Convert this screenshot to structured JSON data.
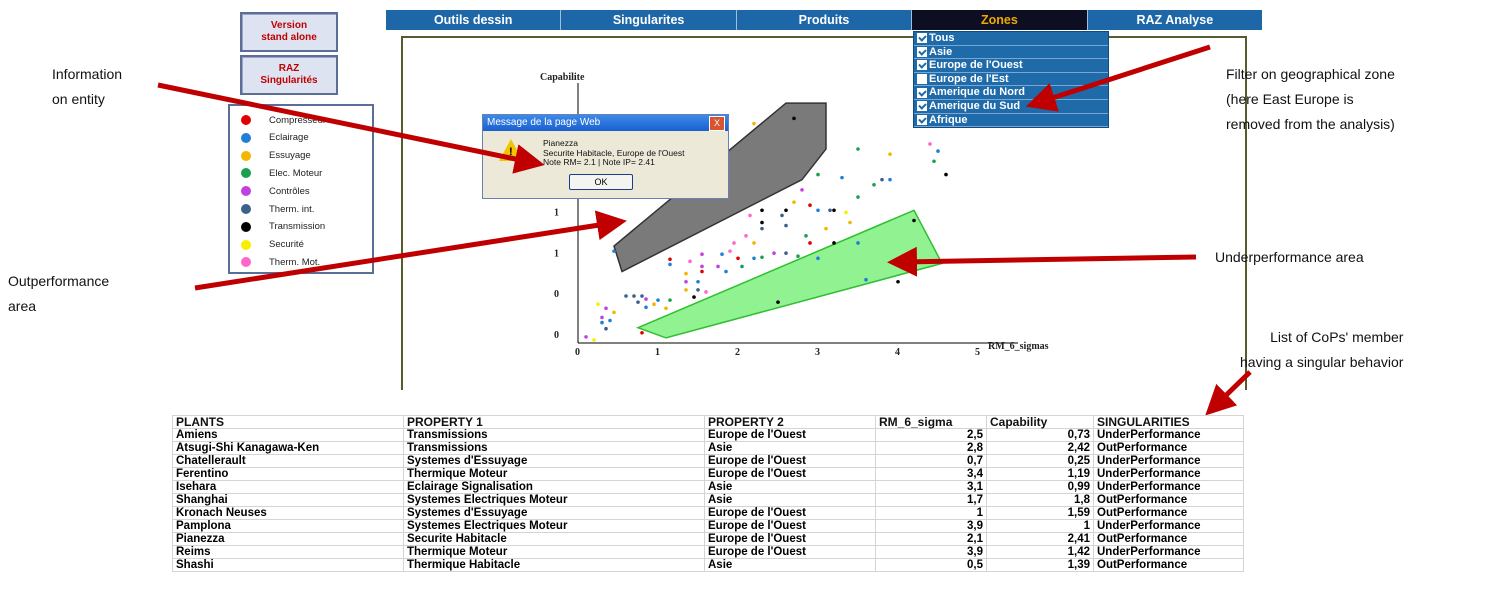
{
  "side_buttons": [
    {
      "label": "Version\nstand alone"
    },
    {
      "label": "RAZ\nSingularités"
    }
  ],
  "legend": [
    {
      "label": "Compresseur",
      "color": "#e00000"
    },
    {
      "label": "Eclairage",
      "color": "#1f7fd6"
    },
    {
      "label": "Essuyage",
      "color": "#f5b400"
    },
    {
      "label": "Elec. Moteur",
      "color": "#1aa050"
    },
    {
      "label": "Contrôles",
      "color": "#c040e0"
    },
    {
      "label": "Therm. int.",
      "color": "#3c5f8c"
    },
    {
      "label": "Transmission",
      "color": "#000000"
    },
    {
      "label": "Securité",
      "color": "#f5f000"
    },
    {
      "label": "Therm. Mot.",
      "color": "#ff66cc"
    }
  ],
  "menu": [
    {
      "label": "Outils dessin",
      "active": false
    },
    {
      "label": "Singularites",
      "active": false
    },
    {
      "label": "Produits",
      "active": false
    },
    {
      "label": "Zones",
      "active": true
    },
    {
      "label": "RAZ Analyse",
      "active": false
    }
  ],
  "zones": [
    {
      "label": "Tous",
      "checked": true
    },
    {
      "label": "Asie",
      "checked": true
    },
    {
      "label": "Europe de l'Ouest",
      "checked": true
    },
    {
      "label": "Europe de l'Est",
      "checked": false
    },
    {
      "label": "Amerique du Nord",
      "checked": true
    },
    {
      "label": "Amerique du Sud",
      "checked": true
    },
    {
      "label": "Afrique",
      "checked": true
    }
  ],
  "dialog": {
    "title": "Message de la page Web",
    "close": "X",
    "lines": [
      "Pianezza",
      "Securite Habitacle, Europe de l'Ouest",
      "Note RM= 2.1  |  Note IP= 2.41"
    ],
    "ok": "OK",
    "icon": "warning-icon"
  },
  "annotations": {
    "info": "Information\non entity",
    "filter": "Filter on geographical zone\n(here East Europe is\nremoved from the analysis)",
    "outperf": "Outperformance\narea",
    "underperf": "Underperformance area",
    "list": "List of CoPs' member\nhaving a singular behavior"
  },
  "chart_data": {
    "type": "scatter",
    "ylabel": "Capabilite",
    "xlabel": "RM_6_sigmas",
    "xlim": [
      0,
      5.5
    ],
    "ylim": [
      0,
      2.4
    ],
    "x_ticks": [
      "0",
      "1",
      "2",
      "3",
      "4",
      "5"
    ],
    "y_ticks": [
      "0",
      "0",
      "1",
      "1",
      "2",
      "2"
    ],
    "outperformance_polygon": [
      [
        0.45,
        0.95
      ],
      [
        2.6,
        2.35
      ],
      [
        3.1,
        2.35
      ],
      [
        3.1,
        1.9
      ],
      [
        2.8,
        1.6
      ],
      [
        0.55,
        0.7
      ]
    ],
    "underperformance_polygon": [
      [
        0.75,
        0.15
      ],
      [
        4.2,
        1.3
      ],
      [
        4.55,
        0.78
      ],
      [
        1.1,
        0.05
      ]
    ],
    "points": [
      {
        "x": 2.7,
        "y": 2.2,
        "color": "#000000"
      },
      {
        "x": 2.2,
        "y": 2.15,
        "color": "#f5b400"
      },
      {
        "x": 3.5,
        "y": 1.9,
        "color": "#1aa050"
      },
      {
        "x": 3.9,
        "y": 1.85,
        "color": "#f5b400"
      },
      {
        "x": 4.4,
        "y": 1.95,
        "color": "#ff66cc"
      },
      {
        "x": 4.5,
        "y": 1.88,
        "color": "#1f7fd6"
      },
      {
        "x": 4.45,
        "y": 1.78,
        "color": "#1aa050"
      },
      {
        "x": 4.6,
        "y": 1.65,
        "color": "#000000"
      },
      {
        "x": 3.0,
        "y": 1.65,
        "color": "#1aa050"
      },
      {
        "x": 3.3,
        "y": 1.62,
        "color": "#1f7fd6"
      },
      {
        "x": 3.7,
        "y": 1.55,
        "color": "#1aa050"
      },
      {
        "x": 3.8,
        "y": 1.6,
        "color": "#3c5f8c"
      },
      {
        "x": 3.9,
        "y": 1.6,
        "color": "#1f7fd6"
      },
      {
        "x": 2.8,
        "y": 1.5,
        "color": "#c040e0"
      },
      {
        "x": 3.5,
        "y": 1.43,
        "color": "#1aa050"
      },
      {
        "x": 2.7,
        "y": 1.38,
        "color": "#f5b400"
      },
      {
        "x": 2.9,
        "y": 1.35,
        "color": "#e00000"
      },
      {
        "x": 2.6,
        "y": 1.3,
        "color": "#000000"
      },
      {
        "x": 2.3,
        "y": 1.3,
        "color": "#000000"
      },
      {
        "x": 2.15,
        "y": 1.25,
        "color": "#ff66cc"
      },
      {
        "x": 2.55,
        "y": 1.25,
        "color": "#3c5f8c"
      },
      {
        "x": 3.0,
        "y": 1.3,
        "color": "#1f7fd6"
      },
      {
        "x": 3.15,
        "y": 1.3,
        "color": "#3c5f8c"
      },
      {
        "x": 3.2,
        "y": 1.3,
        "color": "#000000"
      },
      {
        "x": 3.35,
        "y": 1.28,
        "color": "#f5f000"
      },
      {
        "x": 2.3,
        "y": 1.18,
        "color": "#000000"
      },
      {
        "x": 2.3,
        "y": 1.12,
        "color": "#3c5f8c"
      },
      {
        "x": 3.1,
        "y": 1.12,
        "color": "#f5b400"
      },
      {
        "x": 3.4,
        "y": 1.18,
        "color": "#f5b400"
      },
      {
        "x": 2.6,
        "y": 1.15,
        "color": "#3c5f8c"
      },
      {
        "x": 2.1,
        "y": 1.05,
        "color": "#ff66cc"
      },
      {
        "x": 2.85,
        "y": 1.05,
        "color": "#1aa050"
      },
      {
        "x": 2.9,
        "y": 0.98,
        "color": "#e00000"
      },
      {
        "x": 3.2,
        "y": 0.98,
        "color": "#000000"
      },
      {
        "x": 3.5,
        "y": 0.98,
        "color": "#1f7fd6"
      },
      {
        "x": 1.95,
        "y": 0.98,
        "color": "#ff66cc"
      },
      {
        "x": 2.2,
        "y": 0.98,
        "color": "#f5b400"
      },
      {
        "x": 1.9,
        "y": 0.9,
        "color": "#ff66cc"
      },
      {
        "x": 2.45,
        "y": 0.88,
        "color": "#c040e0"
      },
      {
        "x": 2.6,
        "y": 0.88,
        "color": "#3c5f8c"
      },
      {
        "x": 1.55,
        "y": 0.87,
        "color": "#c040e0"
      },
      {
        "x": 1.8,
        "y": 0.87,
        "color": "#1f7fd6"
      },
      {
        "x": 2.0,
        "y": 0.83,
        "color": "#e00000"
      },
      {
        "x": 2.2,
        "y": 0.83,
        "color": "#1f7fd6"
      },
      {
        "x": 2.3,
        "y": 0.84,
        "color": "#1aa050"
      },
      {
        "x": 2.75,
        "y": 0.85,
        "color": "#1aa050"
      },
      {
        "x": 1.15,
        "y": 0.82,
        "color": "#e00000"
      },
      {
        "x": 1.15,
        "y": 0.77,
        "color": "#1f7fd6"
      },
      {
        "x": 1.4,
        "y": 0.8,
        "color": "#ff66cc"
      },
      {
        "x": 1.55,
        "y": 0.75,
        "color": "#c040e0"
      },
      {
        "x": 1.75,
        "y": 0.75,
        "color": "#c040e0"
      },
      {
        "x": 2.05,
        "y": 0.75,
        "color": "#1aa050"
      },
      {
        "x": 1.55,
        "y": 0.7,
        "color": "#e00000"
      },
      {
        "x": 1.85,
        "y": 0.7,
        "color": "#1f7fd6"
      },
      {
        "x": 1.35,
        "y": 0.68,
        "color": "#f5b400"
      },
      {
        "x": 1.35,
        "y": 0.6,
        "color": "#c040e0"
      },
      {
        "x": 1.5,
        "y": 0.6,
        "color": "#1f7fd6"
      },
      {
        "x": 1.35,
        "y": 0.52,
        "color": "#f5b400"
      },
      {
        "x": 1.5,
        "y": 0.52,
        "color": "#3c5f8c"
      },
      {
        "x": 1.6,
        "y": 0.5,
        "color": "#ff66cc"
      },
      {
        "x": 1.45,
        "y": 0.45,
        "color": "#000000"
      },
      {
        "x": 0.6,
        "y": 0.46,
        "color": "#3c5f8c"
      },
      {
        "x": 0.7,
        "y": 0.46,
        "color": "#3c5f8c"
      },
      {
        "x": 0.8,
        "y": 0.46,
        "color": "#3c5f8c"
      },
      {
        "x": 0.85,
        "y": 0.43,
        "color": "#c040e0"
      },
      {
        "x": 0.75,
        "y": 0.4,
        "color": "#3c5f8c"
      },
      {
        "x": 1.0,
        "y": 0.42,
        "color": "#1f7fd6"
      },
      {
        "x": 1.15,
        "y": 0.42,
        "color": "#1aa050"
      },
      {
        "x": 0.95,
        "y": 0.38,
        "color": "#f5b400"
      },
      {
        "x": 0.85,
        "y": 0.35,
        "color": "#1f7fd6"
      },
      {
        "x": 1.1,
        "y": 0.34,
        "color": "#f5b400"
      },
      {
        "x": 0.25,
        "y": 0.38,
        "color": "#f5f000"
      },
      {
        "x": 0.35,
        "y": 0.34,
        "color": "#c040e0"
      },
      {
        "x": 0.45,
        "y": 0.3,
        "color": "#f5b400"
      },
      {
        "x": 0.3,
        "y": 0.25,
        "color": "#c040e0"
      },
      {
        "x": 0.4,
        "y": 0.22,
        "color": "#1f7fd6"
      },
      {
        "x": 0.3,
        "y": 0.2,
        "color": "#1f7fd6"
      },
      {
        "x": 0.35,
        "y": 0.14,
        "color": "#3c5f8c"
      },
      {
        "x": 0.1,
        "y": 0.06,
        "color": "#c040e0"
      },
      {
        "x": 0.2,
        "y": 0.03,
        "color": "#f5f000"
      },
      {
        "x": 0.8,
        "y": 0.1,
        "color": "#e00000"
      },
      {
        "x": 0.45,
        "y": 0.9,
        "color": "#1f7fd6"
      },
      {
        "x": 3.0,
        "y": 0.83,
        "color": "#1f7fd6"
      },
      {
        "x": 4.2,
        "y": 1.2,
        "color": "#000000"
      },
      {
        "x": 3.6,
        "y": 0.62,
        "color": "#1f7fd6"
      },
      {
        "x": 4.0,
        "y": 0.6,
        "color": "#000000"
      },
      {
        "x": 2.5,
        "y": 0.4,
        "color": "#000000"
      }
    ]
  },
  "table": {
    "headers": [
      "PLANTS",
      "PROPERTY 1",
      "PROPERTY 2",
      "RM_6_sigma",
      "Capability",
      "SINGULARITIES"
    ],
    "rows": [
      [
        "Amiens",
        "Transmissions",
        "Europe de l'Ouest",
        "2,5",
        "0,73",
        "UnderPerformance"
      ],
      [
        "Atsugi-Shi Kanagawa-Ken",
        "Transmissions",
        "Asie",
        "2,8",
        "2,42",
        "OutPerformance"
      ],
      [
        "Chatellerault",
        "Systemes d'Essuyage",
        "Europe de l'Ouest",
        "0,7",
        "0,25",
        "UnderPerformance"
      ],
      [
        "Ferentino",
        "Thermique Moteur",
        "Europe de l'Ouest",
        "3,4",
        "1,19",
        "UnderPerformance"
      ],
      [
        "Isehara",
        "Eclairage Signalisation",
        "Asie",
        "3,1",
        "0,99",
        "UnderPerformance"
      ],
      [
        "Shanghai",
        "Systemes Electriques Moteur",
        "Asie",
        "1,7",
        "1,8",
        "OutPerformance"
      ],
      [
        "Kronach Neuses",
        "Systemes d'Essuyage",
        "Europe de l'Ouest",
        "1",
        "1,59",
        "OutPerformance"
      ],
      [
        "Pamplona",
        "Systemes Electriques Moteur",
        "Europe de l'Ouest",
        "3,9",
        "1",
        "UnderPerformance"
      ],
      [
        "Pianezza",
        "Securite Habitacle",
        "Europe de l'Ouest",
        "2,1",
        "2,41",
        "OutPerformance"
      ],
      [
        "Reims",
        "Thermique Moteur",
        "Europe de l'Ouest",
        "3,9",
        "1,42",
        "UnderPerformance"
      ],
      [
        "Shashi",
        "Thermique Habitacle",
        "Asie",
        "0,5",
        "1,39",
        "OutPerformance"
      ]
    ]
  }
}
